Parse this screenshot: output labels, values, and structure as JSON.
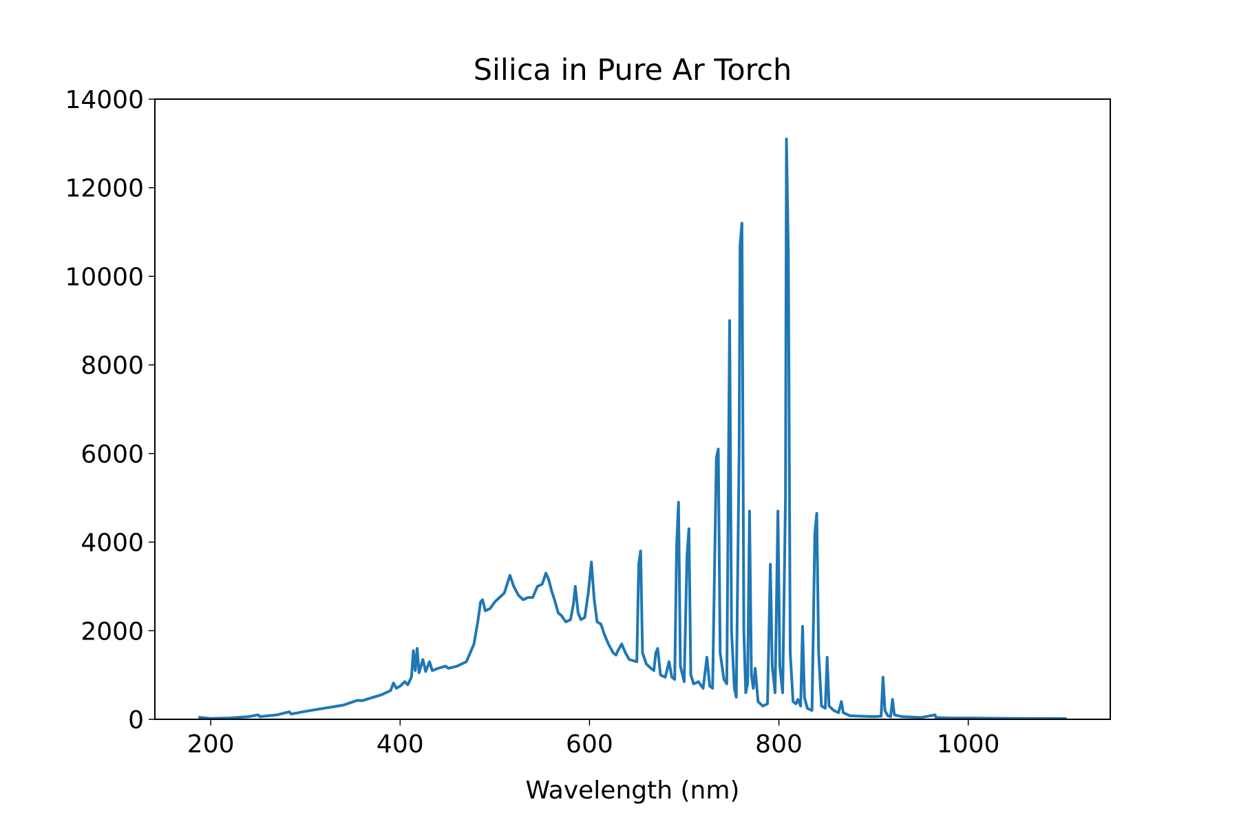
{
  "chart_data": {
    "type": "line",
    "title": "Silica in Pure Ar Torch",
    "x_label": "Wavelength (nm)",
    "x": [
      187,
      190,
      200,
      220,
      240,
      250,
      252,
      270,
      283,
      285,
      300,
      320,
      340,
      355,
      360,
      375,
      380,
      390,
      393,
      396,
      400,
      405,
      408,
      412,
      414,
      416,
      418,
      420,
      424,
      427,
      431,
      434,
      440,
      448,
      451,
      460,
      470,
      478,
      482,
      485,
      487,
      490,
      495,
      500,
      505,
      510,
      513,
      516,
      520,
      525,
      530,
      535,
      540,
      545,
      550,
      554,
      557,
      560,
      563,
      567,
      570,
      575,
      580,
      583,
      585,
      588,
      591,
      595,
      599,
      602,
      605,
      608,
      612,
      616,
      620,
      625,
      628,
      630,
      634,
      638,
      642,
      650,
      652,
      654,
      656,
      660,
      665,
      668,
      670,
      672,
      675,
      680,
      684,
      687,
      690,
      692,
      694,
      696,
      700,
      703,
      705,
      707,
      710,
      715,
      720,
      724,
      727,
      730,
      734,
      736,
      738,
      742,
      745,
      748,
      750,
      753,
      755,
      758,
      759,
      761,
      763,
      765,
      767,
      769,
      771,
      773,
      775,
      778,
      783,
      788,
      791,
      793,
      796,
      799,
      801,
      804,
      807,
      808,
      810,
      812,
      815,
      818,
      820,
      823,
      825,
      827,
      830,
      835,
      838,
      840,
      842,
      845,
      849,
      851,
      853,
      858,
      863,
      866,
      868,
      875,
      900,
      908,
      910,
      912,
      915,
      918,
      920,
      922,
      930,
      950,
      965,
      966,
      980,
      1000,
      1050,
      1104
    ],
    "values": [
      50,
      40,
      20,
      30,
      60,
      100,
      60,
      100,
      170,
      120,
      180,
      250,
      320,
      430,
      420,
      520,
      550,
      650,
      820,
      700,
      750,
      850,
      780,
      950,
      1550,
      1100,
      1600,
      1050,
      1350,
      1080,
      1300,
      1100,
      1150,
      1200,
      1150,
      1200,
      1300,
      1700,
      2200,
      2650,
      2700,
      2450,
      2500,
      2650,
      2750,
      2850,
      3050,
      3250,
      3000,
      2800,
      2700,
      2750,
      2750,
      3000,
      3050,
      3300,
      3150,
      2900,
      2700,
      2400,
      2350,
      2200,
      2250,
      2600,
      3000,
      2400,
      2250,
      2300,
      2900,
      3550,
      2700,
      2200,
      2150,
      1900,
      1700,
      1500,
      1450,
      1550,
      1700,
      1500,
      1350,
      1300,
      3500,
      3800,
      1500,
      1250,
      1150,
      1100,
      1500,
      1600,
      1000,
      950,
      1300,
      950,
      900,
      3900,
      4900,
      1200,
      850,
      3700,
      4300,
      1000,
      800,
      850,
      700,
      1400,
      750,
      700,
      5900,
      6100,
      1500,
      900,
      800,
      9000,
      2000,
      700,
      500,
      6000,
      10700,
      11200,
      2000,
      600,
      800,
      4700,
      1000,
      700,
      1150,
      400,
      300,
      350,
      3500,
      1200,
      600,
      4700,
      1200,
      600,
      5000,
      13100,
      10500,
      1500,
      400,
      350,
      450,
      300,
      2100,
      500,
      250,
      200,
      4200,
      4650,
      1500,
      300,
      250,
      1400,
      300,
      200,
      150,
      400,
      150,
      80,
      60,
      70,
      950,
      200,
      80,
      60,
      450,
      100,
      60,
      40,
      100,
      40,
      30,
      30,
      20,
      15
    ],
    "color": "#1f77b4",
    "xlim": [
      141,
      1150
    ],
    "xticks": [
      200,
      400,
      600,
      800,
      1000
    ],
    "ylim": [
      0,
      14000
    ],
    "yticks": [
      0,
      2000,
      4000,
      6000,
      8000,
      10000,
      12000,
      14000
    ]
  }
}
